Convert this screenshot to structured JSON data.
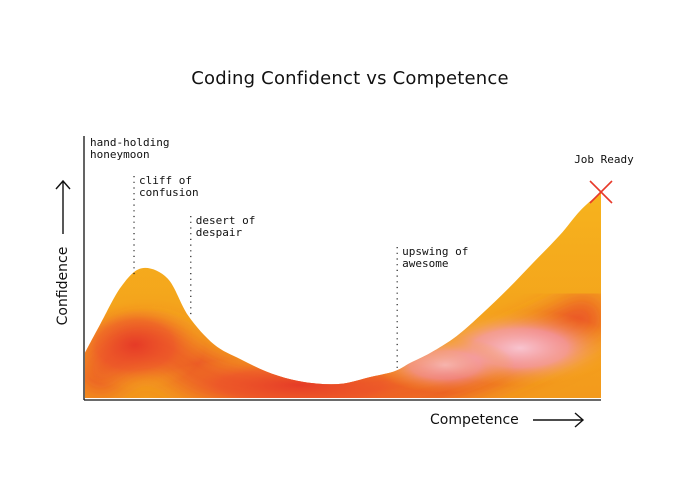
{
  "chart_data": {
    "type": "area",
    "title": "Coding Confidenct vs Competence",
    "xlabel": "Competence",
    "ylabel": "Confidence",
    "series": [
      {
        "x": [
          0,
          3,
          7,
          11,
          16,
          20,
          25,
          30,
          35,
          40,
          45,
          50,
          55,
          60,
          63,
          67,
          72,
          77,
          82,
          87,
          92,
          96,
          100
        ],
        "y": [
          22,
          36,
          54,
          63,
          58,
          40,
          26,
          19,
          13,
          9,
          7,
          7,
          10,
          13,
          17,
          22,
          30,
          41,
          53,
          66,
          79,
          91,
          100
        ]
      }
    ],
    "annotations": [
      {
        "label_lines": [
          "hand-holding",
          "honeymoon"
        ],
        "x": 0,
        "leader": false
      },
      {
        "label_lines": [
          "cliff of",
          "confusion"
        ],
        "x": 9.5,
        "leader": true
      },
      {
        "label_lines": [
          "desert of",
          "despair"
        ],
        "x": 20.5,
        "leader": true
      },
      {
        "label_lines": [
          "upswing of",
          "awesome"
        ],
        "x": 60.5,
        "leader": true
      },
      {
        "label_lines": [
          "Job Ready"
        ],
        "x": 100,
        "leader": false,
        "marker": "x"
      }
    ],
    "ylim": [
      0,
      100
    ],
    "xlim": [
      0,
      100
    ],
    "grid": false,
    "legend": "none",
    "colors": {
      "fill_outer": "#f6b119",
      "fill_core": "#e8392a",
      "fill_blush": "#f5a9b8",
      "marker": "#e8392a",
      "axis": "#111111"
    }
  }
}
